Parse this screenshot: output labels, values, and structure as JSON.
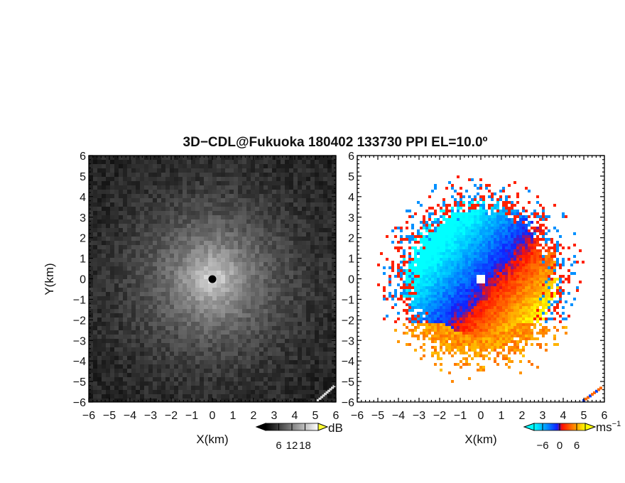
{
  "title": "3D−CDL@Fukuoka 180402 133730 PPI EL=10.0º",
  "colors": {
    "background": "#ffffff",
    "frame": "#000000",
    "velocity_negative": "#0044ff",
    "velocity_zero": "#ff4400",
    "velocity_positive": "#ffcc00",
    "center_left": "#000000",
    "center_right": "#ffffff"
  },
  "chart_data": [
    {
      "type": "heatmap",
      "panel": "left",
      "quantity": "SNR",
      "xlabel": "X(km)",
      "ylabel": "Y(km)",
      "xlim": [
        -6,
        6
      ],
      "ylim": [
        -6,
        6
      ],
      "x_ticks": [
        "−6",
        "−5",
        "−4",
        "−3",
        "−2",
        "−1",
        "0",
        "1",
        "2",
        "3",
        "4",
        "5",
        "6"
      ],
      "y_ticks": [
        "6",
        "5",
        "4",
        "3",
        "2",
        "1",
        "0",
        "−1",
        "−2",
        "−3",
        "−4",
        "−5",
        "−6"
      ],
      "colormap": "grayscale",
      "colorbar": {
        "unit": "dB",
        "tick_labels": [
          "6",
          "12",
          "18"
        ],
        "ticks": [
          6,
          12,
          18
        ],
        "range": [
          0,
          24
        ]
      }
    },
    {
      "type": "heatmap",
      "panel": "right",
      "quantity": "Doppler velocity",
      "xlabel": "X(km)",
      "ylabel": "",
      "xlim": [
        -6,
        6
      ],
      "ylim": [
        -6,
        6
      ],
      "x_ticks": [
        "−6",
        "−5",
        "−4",
        "−3",
        "−2",
        "−1",
        "0",
        "1",
        "2",
        "3",
        "4",
        "5",
        "6"
      ],
      "y_ticks": [
        "6",
        "5",
        "4",
        "3",
        "2",
        "1",
        "0",
        "−1",
        "−2",
        "−3",
        "−4",
        "−5",
        "−6"
      ],
      "colormap": "cyan-blue-red-orange-yellow",
      "colorbar": {
        "unit": "ms",
        "unit_exponent": "−1",
        "tick_labels": [
          "−6",
          "0",
          "6"
        ],
        "ticks": [
          -6,
          0,
          6
        ],
        "range": [
          -9,
          9
        ]
      }
    }
  ]
}
